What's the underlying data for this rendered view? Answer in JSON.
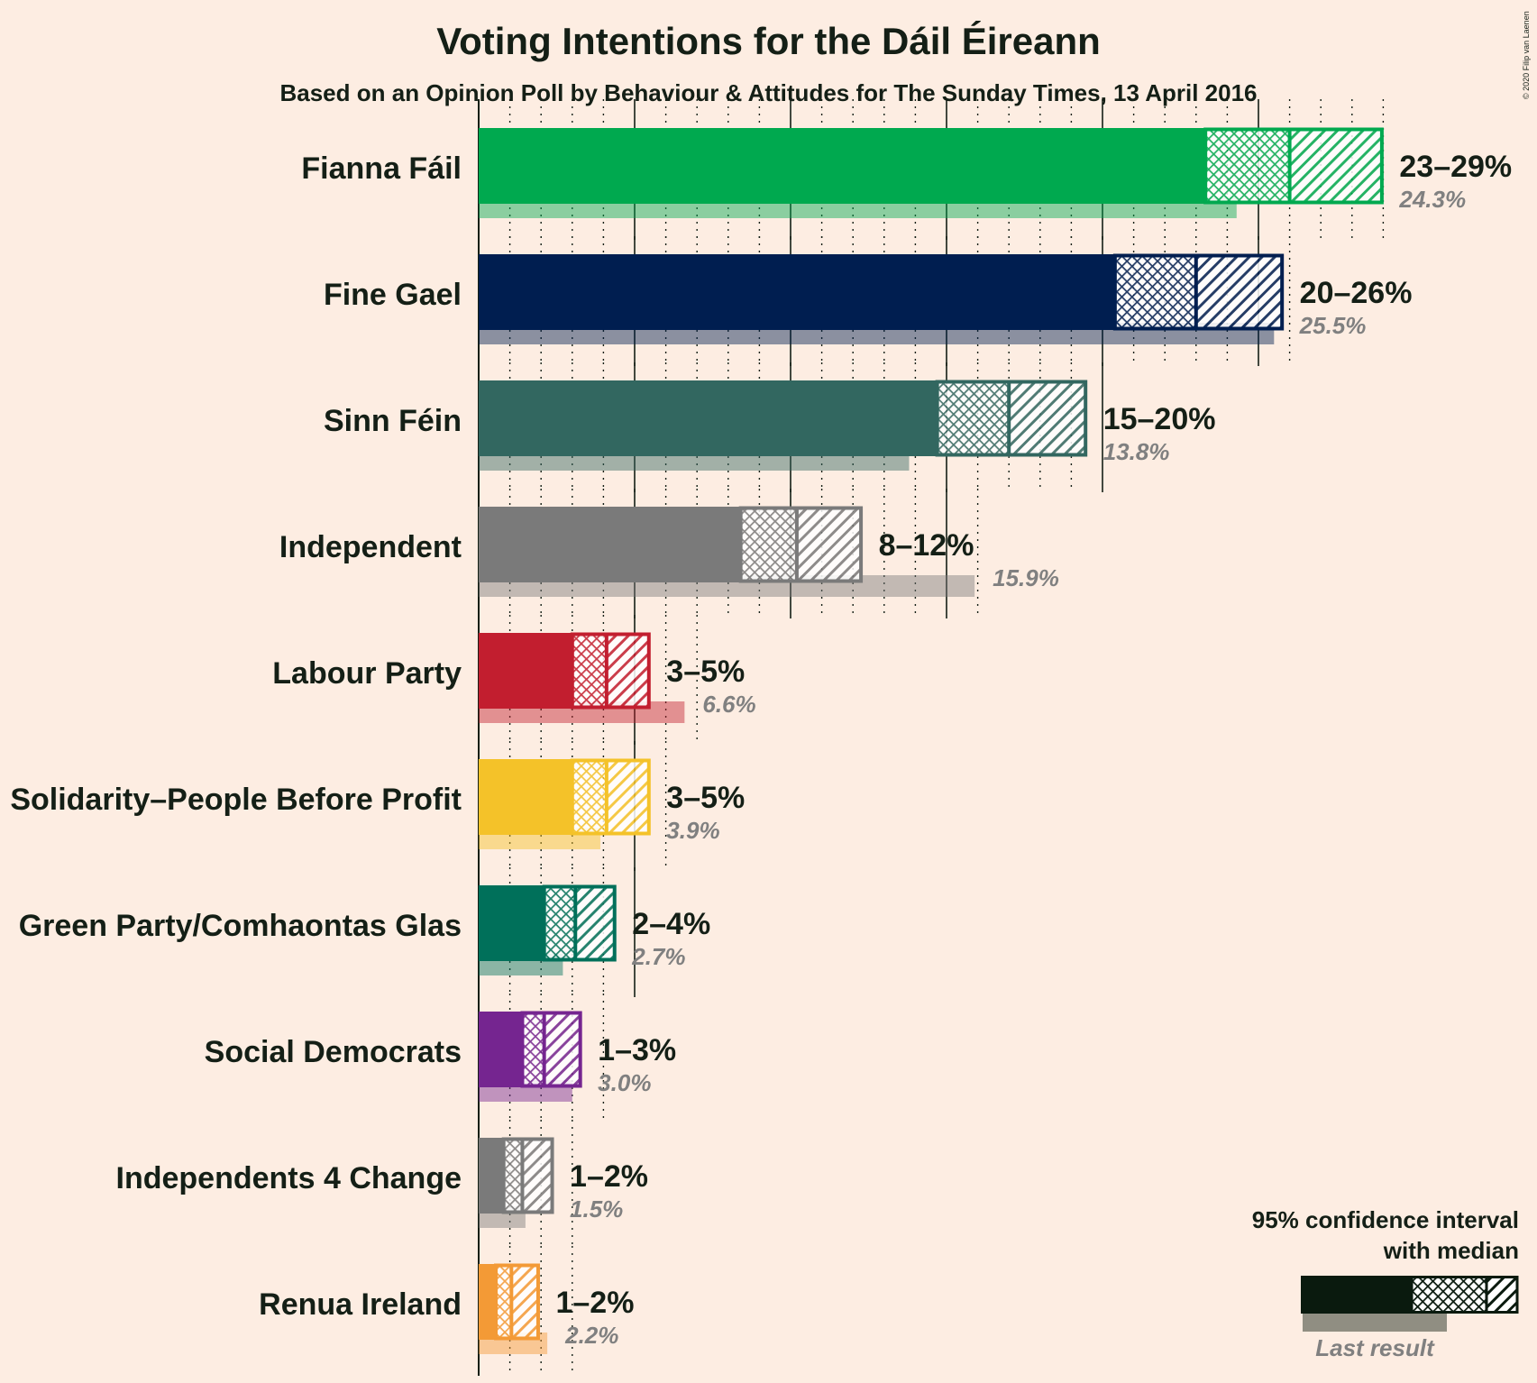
{
  "chart_data": {
    "type": "bar",
    "title": "Voting Intentions for the Dáil Éireann",
    "subtitle": "Based on an Opinion Poll by Behaviour & Attitudes for The Sunday Times, 13 April 2016",
    "credit": "© 2020 Filip van Laenen",
    "xlim": [
      0,
      29
    ],
    "grid": true,
    "legend_position": "bottom-right",
    "series_keys": [
      "ci_low",
      "median",
      "ci_high",
      "last_result"
    ],
    "categories": [
      "Fianna Fáil",
      "Fine Gael",
      "Sinn Féin",
      "Independent",
      "Labour Party",
      "Solidarity–People Before Profit",
      "Green Party/Comhaontas Glas",
      "Social Democrats",
      "Independents 4 Change",
      "Renua Ireland"
    ],
    "parties": [
      {
        "name": "Fianna Fáil",
        "color": "#00A94F",
        "ci_low": 23.3,
        "median": 26.0,
        "ci_high": 29.0,
        "range_label": "23–29%",
        "last_result": 24.3,
        "last_label": "24.3%"
      },
      {
        "name": "Fine Gael",
        "color": "#001E50",
        "ci_low": 20.4,
        "median": 23.0,
        "ci_high": 25.8,
        "range_label": "20–26%",
        "last_result": 25.5,
        "last_label": "25.5%"
      },
      {
        "name": "Sinn Féin",
        "color": "#326760",
        "ci_low": 14.7,
        "median": 17.0,
        "ci_high": 19.5,
        "range_label": "15–20%",
        "last_result": 13.8,
        "last_label": "13.8%"
      },
      {
        "name": "Independent",
        "color": "#7A7A7A",
        "ci_low": 8.4,
        "median": 10.2,
        "ci_high": 12.3,
        "range_label": "8–12%",
        "last_result": 15.9,
        "last_label": "15.9%"
      },
      {
        "name": "Labour Party",
        "color": "#C21E2F",
        "ci_low": 3.0,
        "median": 4.1,
        "ci_high": 5.5,
        "range_label": "3–5%",
        "last_result": 6.6,
        "last_label": "6.6%"
      },
      {
        "name": "Solidarity–People Before Profit",
        "color": "#F4C229",
        "ci_low": 3.0,
        "median": 4.1,
        "ci_high": 5.5,
        "range_label": "3–5%",
        "last_result": 3.9,
        "last_label": "3.9%"
      },
      {
        "name": "Green Party/Comhaontas Glas",
        "color": "#00705A",
        "ci_low": 2.1,
        "median": 3.1,
        "ci_high": 4.4,
        "range_label": "2–4%",
        "last_result": 2.7,
        "last_label": "2.7%"
      },
      {
        "name": "Social Democrats",
        "color": "#752590",
        "ci_low": 1.4,
        "median": 2.1,
        "ci_high": 3.3,
        "range_label": "1–3%",
        "last_result": 3.0,
        "last_label": "3.0%"
      },
      {
        "name": "Independents 4 Change",
        "color": "#7A7A7A",
        "ci_low": 0.8,
        "median": 1.4,
        "ci_high": 2.4,
        "range_label": "1–2%",
        "last_result": 1.5,
        "last_label": "1.5%"
      },
      {
        "name": "Renua Ireland",
        "color": "#F39A36",
        "ci_low": 0.55,
        "median": 1.05,
        "ci_high": 1.95,
        "range_label": "1–2%",
        "last_result": 2.2,
        "last_label": "2.2%"
      }
    ]
  },
  "legend": {
    "title_line1": "95% confidence interval",
    "title_line2": "with median",
    "last_result_label": "Last result",
    "color": "#0A1A0E"
  }
}
